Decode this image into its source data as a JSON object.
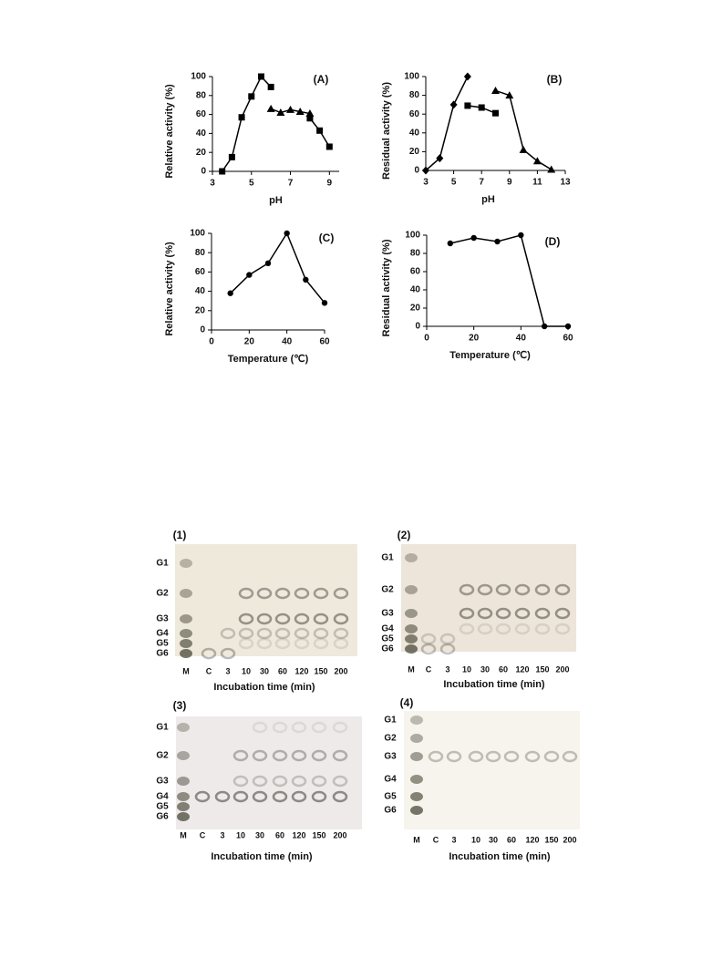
{
  "chart_data": [
    {
      "type": "line",
      "annotation": "(A)",
      "xlabel": "pH",
      "ylabel": "Relative activity (%)",
      "x": [
        3.5,
        4,
        4.5,
        5,
        5.5,
        6,
        6.5,
        7,
        7.5,
        8,
        8.5,
        9
      ],
      "xlim": [
        3,
        9.5
      ],
      "xticks": [
        3,
        5,
        7,
        9
      ],
      "ylim": [
        0,
        100
      ],
      "yticks": [
        0,
        20,
        40,
        60,
        80,
        100
      ],
      "series": [
        {
          "marker": "square",
          "color": "#000000",
          "values": [
            0,
            15,
            57,
            79,
            100,
            89,
            null,
            null,
            null,
            56,
            43,
            26
          ]
        },
        {
          "marker": "triangle",
          "color": "#000000",
          "values": [
            null,
            null,
            null,
            null,
            null,
            66,
            62,
            65,
            63,
            61,
            null,
            null
          ]
        }
      ]
    },
    {
      "type": "line",
      "annotation": "(B)",
      "xlabel": "pH",
      "ylabel": "Residual activity (%)",
      "x": [
        3,
        4,
        5,
        6,
        7,
        8,
        9,
        10,
        11,
        12
      ],
      "xlim": [
        3,
        13
      ],
      "xticks": [
        3,
        5,
        7,
        9,
        11,
        13
      ],
      "ylim": [
        0,
        100
      ],
      "yticks": [
        0,
        20,
        40,
        60,
        80,
        100
      ],
      "series": [
        {
          "marker": "diamond",
          "color": "#000000",
          "values": [
            0,
            13,
            70,
            100,
            null,
            null,
            null,
            null,
            null,
            null
          ]
        },
        {
          "marker": "square",
          "color": "#000000",
          "values": [
            null,
            null,
            null,
            69,
            67,
            61,
            null,
            null,
            null,
            null
          ]
        },
        {
          "marker": "triangle",
          "color": "#000000",
          "values": [
            null,
            null,
            null,
            null,
            null,
            85,
            80,
            22,
            10,
            1
          ]
        }
      ]
    },
    {
      "type": "line",
      "annotation": "(C)",
      "xlabel": "Temperature (℃)",
      "ylabel": "Relative activity (%)",
      "x": [
        10,
        20,
        30,
        40,
        50,
        60
      ],
      "xlim": [
        0,
        60
      ],
      "xticks": [
        0,
        20,
        40,
        60
      ],
      "ylim": [
        0,
        100
      ],
      "yticks": [
        0,
        20,
        40,
        60,
        80,
        100
      ],
      "series": [
        {
          "marker": "circle",
          "color": "#000000",
          "values": [
            38,
            57,
            69,
            100,
            52,
            28
          ]
        }
      ]
    },
    {
      "type": "line",
      "annotation": "(D)",
      "xlabel": "Temperature (℃)",
      "ylabel": "Residual activity (%)",
      "x": [
        10,
        20,
        30,
        40,
        50,
        60
      ],
      "xlim": [
        0,
        60
      ],
      "xticks": [
        0,
        20,
        40,
        60
      ],
      "ylim": [
        0,
        100
      ],
      "yticks": [
        0,
        20,
        40,
        60,
        80,
        100
      ],
      "series": [
        {
          "marker": "circle",
          "color": "#000000",
          "values": [
            91,
            97,
            93,
            100,
            0,
            0
          ]
        }
      ]
    }
  ],
  "gels": [
    {
      "label": "(1)",
      "rows": [
        "G1",
        "G2",
        "G3",
        "G4",
        "G5",
        "G6"
      ],
      "lanes": [
        "M",
        "C",
        "3",
        "10",
        "30",
        "60",
        "120",
        "150",
        "200"
      ],
      "xlabel": "Incubation time (min)"
    },
    {
      "label": "(2)",
      "rows": [
        "G1",
        "G2",
        "G3",
        "G4",
        "G5",
        "G6"
      ],
      "lanes": [
        "M",
        "C",
        "3",
        "10",
        "30",
        "60",
        "120",
        "150",
        "200"
      ],
      "xlabel": "Incubation time (min)"
    },
    {
      "label": "(3)",
      "rows": [
        "G1",
        "G2",
        "G3",
        "G4",
        "G5",
        "G6"
      ],
      "lanes": [
        "M",
        "C",
        "3",
        "10",
        "30",
        "60",
        "120",
        "150",
        "200"
      ],
      "xlabel": "Incubation time (min)"
    },
    {
      "label": "(4)",
      "rows": [
        "G1",
        "G2",
        "G3",
        "G4",
        "G5",
        "G6"
      ],
      "lanes": [
        "M",
        "C",
        "3",
        "10",
        "30",
        "60",
        "120",
        "150",
        "200"
      ],
      "xlabel": "Incubation time (min)"
    }
  ]
}
